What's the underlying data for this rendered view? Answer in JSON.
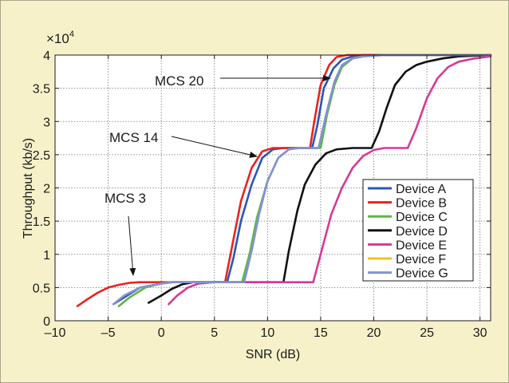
{
  "chart_data": {
    "type": "line",
    "title": "",
    "xlabel": "SNR (dB)",
    "ylabel": "Throughput (kb/s)",
    "y_multiplier_label": "×10",
    "y_multiplier_exp": "4",
    "xlim": [
      -10,
      31
    ],
    "ylim": [
      0,
      4
    ],
    "xticks": [
      -10,
      -5,
      0,
      5,
      10,
      15,
      20,
      25,
      30
    ],
    "xtick_labels": [
      "–10",
      "–5",
      "0",
      "5",
      "10",
      "15",
      "20",
      "25",
      "30"
    ],
    "yticks": [
      0,
      0.5,
      1,
      1.5,
      2,
      2.5,
      3,
      3.5,
      4
    ],
    "ytick_labels": [
      "0",
      "0.5",
      "1",
      "1.5",
      "2",
      "2.5",
      "3",
      "3.5",
      "4"
    ],
    "grid": true,
    "legend_position": "right",
    "annotations": [
      {
        "text": "MCS 20",
        "x": 14.4,
        "y": 3.8
      },
      {
        "text": "MCS 14",
        "x": 12.9,
        "y": 2.53
      },
      {
        "text": "MCS 3",
        "x": -5.8,
        "y": 0.75
      }
    ],
    "series": [
      {
        "name": "Device A",
        "color": "#2b55b8",
        "x": [
          -4.5,
          -3,
          -2,
          0,
          1,
          5,
          6.2,
          6.8,
          7.5,
          8.5,
          9.5,
          10.5,
          11.5,
          13,
          14.2,
          14.7,
          15.3,
          16.2,
          17,
          18,
          19,
          21,
          31
        ],
        "y": [
          0.25,
          0.4,
          0.5,
          0.56,
          0.58,
          0.58,
          0.58,
          0.95,
          1.5,
          2.05,
          2.45,
          2.58,
          2.6,
          2.6,
          2.6,
          2.95,
          3.5,
          3.8,
          3.93,
          3.98,
          4,
          4,
          4
        ]
      },
      {
        "name": "Device B",
        "color": "#e8231f",
        "x": [
          -7.9,
          -7,
          -6,
          -5,
          -4,
          -3,
          -2,
          0,
          5,
          6,
          6.7,
          7.5,
          8.5,
          9.5,
          10.5,
          11.5,
          13,
          14,
          14.4,
          15,
          15.8,
          16.5,
          17.5,
          19,
          31
        ],
        "y": [
          0.22,
          0.32,
          0.42,
          0.5,
          0.54,
          0.57,
          0.58,
          0.58,
          0.58,
          0.58,
          1.15,
          1.8,
          2.3,
          2.55,
          2.6,
          2.6,
          2.6,
          2.6,
          3.0,
          3.55,
          3.85,
          3.97,
          4,
          4,
          4
        ]
      },
      {
        "name": "Device C",
        "color": "#5cb845",
        "x": [
          -4,
          -3,
          -1.5,
          0,
          1,
          5,
          7.6,
          8.3,
          9,
          10,
          11,
          12,
          13,
          14.5,
          15,
          15.6,
          16.3,
          17,
          18,
          19,
          21,
          31
        ],
        "y": [
          0.22,
          0.35,
          0.5,
          0.56,
          0.58,
          0.58,
          0.58,
          1.0,
          1.55,
          2.1,
          2.45,
          2.58,
          2.6,
          2.6,
          2.6,
          3.1,
          3.55,
          3.82,
          3.95,
          3.98,
          4,
          4
        ]
      },
      {
        "name": "Device D",
        "color": "#111111",
        "x": [
          -1.2,
          0,
          1,
          2,
          3,
          5,
          11.5,
          12,
          12.8,
          13.5,
          14.5,
          15.5,
          16.5,
          18,
          19.8,
          20.5,
          21.2,
          22,
          23,
          24,
          25,
          26.5,
          28,
          31
        ],
        "y": [
          0.27,
          0.38,
          0.48,
          0.55,
          0.58,
          0.58,
          0.58,
          1.05,
          1.65,
          2.05,
          2.35,
          2.52,
          2.58,
          2.6,
          2.6,
          2.85,
          3.2,
          3.55,
          3.75,
          3.85,
          3.9,
          3.95,
          3.98,
          4
        ]
      },
      {
        "name": "Device E",
        "color": "#d63a95",
        "x": [
          0.7,
          1.5,
          2.5,
          3.5,
          5,
          9,
          14.3,
          15,
          16,
          17,
          18,
          19,
          20,
          21,
          22,
          23.2,
          24,
          25,
          26,
          27,
          28,
          29.5,
          31
        ],
        "y": [
          0.25,
          0.38,
          0.5,
          0.56,
          0.58,
          0.58,
          0.58,
          1.0,
          1.6,
          2.0,
          2.3,
          2.48,
          2.57,
          2.6,
          2.6,
          2.6,
          2.9,
          3.35,
          3.65,
          3.82,
          3.9,
          3.95,
          3.98
        ]
      },
      {
        "name": "Device F",
        "color": "#f0c419",
        "x": [],
        "y": []
      },
      {
        "name": "Device G",
        "color": "#8591d3",
        "x": [
          -4.5,
          -3.5,
          -2,
          0,
          1,
          5,
          7.8,
          8.5,
          9.2,
          10,
          11,
          12,
          13,
          14.4,
          14.8,
          15.5,
          16.3,
          17,
          18,
          19,
          21,
          31
        ],
        "y": [
          0.25,
          0.38,
          0.5,
          0.56,
          0.58,
          0.58,
          0.58,
          1.05,
          1.6,
          2.1,
          2.45,
          2.58,
          2.6,
          2.6,
          2.6,
          3.1,
          3.6,
          3.85,
          3.95,
          3.98,
          4,
          4
        ]
      }
    ]
  }
}
